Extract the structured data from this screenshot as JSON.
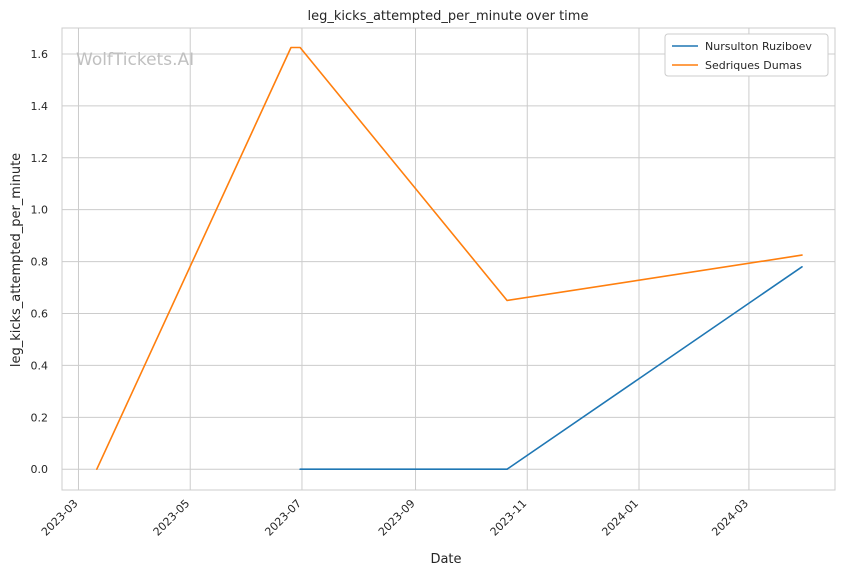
{
  "chart_data": {
    "type": "line",
    "title": "leg_kicks_attempted_per_minute over time",
    "xlabel": "Date",
    "ylabel": "leg_kicks_attempted_per_minute",
    "watermark": "WolfTickets.AI",
    "x_ticks": [
      "2023-03",
      "2023-05",
      "2023-07",
      "2023-09",
      "2023-11",
      "2024-01",
      "2024-03"
    ],
    "x_tick_dates": [
      "2023-03-01",
      "2023-05-01",
      "2023-07-01",
      "2023-09-01",
      "2023-11-01",
      "2024-01-01",
      "2024-03-01"
    ],
    "xlim": [
      "2023-02-20",
      "2024-04-17"
    ],
    "y_ticks": [
      "0.0",
      "0.2",
      "0.4",
      "0.6",
      "0.8",
      "1.0",
      "1.2",
      "1.4",
      "1.6"
    ],
    "y_tick_values": [
      0,
      0.2,
      0.4,
      0.6,
      0.8,
      1.0,
      1.2,
      1.4,
      1.6
    ],
    "ylim": [
      -0.08,
      1.7
    ],
    "grid": true,
    "legend_position": "top-right",
    "series": [
      {
        "name": "Nursulton Ruziboev",
        "color": "#1f77b4",
        "x": [
          "2023-06-30",
          "2023-10-21",
          "2024-03-30"
        ],
        "y": [
          0.0,
          0.0,
          0.78
        ]
      },
      {
        "name": "Sedriques Dumas",
        "color": "#ff7f0e",
        "x": [
          "2023-03-11",
          "2023-06-25",
          "2023-06-30",
          "2023-10-21",
          "2024-03-30"
        ],
        "y": [
          0.0,
          1.625,
          1.625,
          0.65,
          0.825
        ]
      }
    ]
  }
}
